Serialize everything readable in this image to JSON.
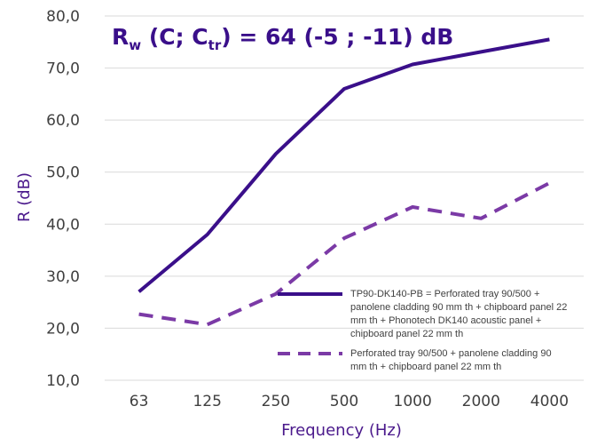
{
  "chart_data": {
    "type": "line",
    "title_parts": {
      "r": "R",
      "w": "w",
      "c_open": " (C; C",
      "tr": "tr",
      "rest": ") = 64 (-5 ; -11) dB"
    },
    "xlabel": "Frequency (Hz)",
    "ylabel": "R (dB)",
    "categories": [
      "63",
      "125",
      "250",
      "500",
      "1000",
      "2000",
      "4000"
    ],
    "y_ticks": [
      "10,0",
      "20,0",
      "30,0",
      "40,0",
      "50,0",
      "60,0",
      "70,0",
      "80,0"
    ],
    "ylim": [
      10,
      80
    ],
    "grid": "horizontal",
    "legend_position": "bottom-right inside plot",
    "series": [
      {
        "name": "TP90-DK140-PB = Perforated tray 90/500 + panolene cladding 90 mm th + chipboard panel 22 mm th + Phonotech DK140 acoustic panel + chipboard panel 22 mm th",
        "legend_lines": [
          "TP90-DK140-PB = Perforated tray 90/500 +",
          "panolene cladding 90 mm th + chipboard panel 22",
          "mm th + Phonotech DK140 acoustic panel +",
          "chipboard panel 22 mm th"
        ],
        "values": [
          27.0,
          38.0,
          53.5,
          66.0,
          70.7,
          73.1,
          75.5
        ],
        "color": "#3a0f8a",
        "style": "solid"
      },
      {
        "name": "Perforated tray 90/500 + panolene cladding 90 mm th + chipboard panel 22 mm th",
        "legend_lines": [
          "Perforated tray 90/500 + panolene cladding 90",
          "mm th + chipboard panel 22 mm th"
        ],
        "values": [
          22.7,
          20.7,
          26.6,
          37.3,
          43.3,
          41.1,
          47.9
        ],
        "color": "#7b3aa6",
        "style": "dashed"
      }
    ]
  }
}
